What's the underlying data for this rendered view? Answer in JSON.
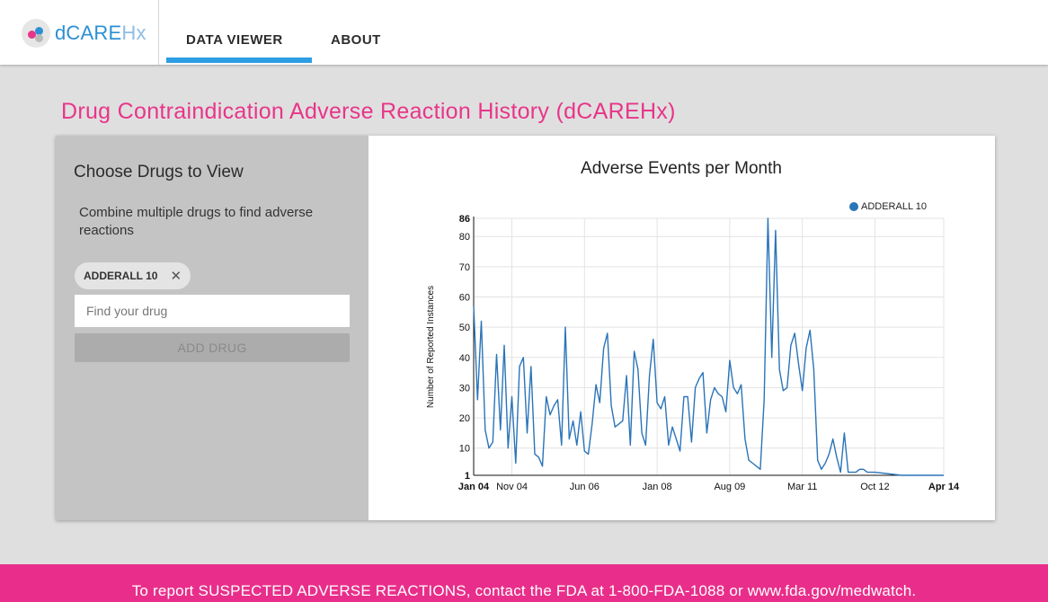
{
  "app": {
    "logo_main": "dCARE",
    "logo_accent": "Hx"
  },
  "nav": {
    "items": [
      {
        "label": "DATA VIEWER",
        "active": true
      },
      {
        "label": "ABOUT",
        "active": false
      }
    ]
  },
  "page": {
    "title": "Drug Contraindication Adverse Reaction History (dCAREHx)"
  },
  "panel": {
    "heading": "Choose Drugs to View",
    "description": "Combine multiple drugs to find adverse reactions",
    "selected_drugs": [
      "ADDERALL 10"
    ],
    "search_placeholder": "Find your drug",
    "search_value": "",
    "add_button_label": "ADD DRUG",
    "remove_icon": "close-icon"
  },
  "footer": {
    "text": "To report SUSPECTED ADVERSE REACTIONS, contact the FDA at 1-800-FDA-1088 or www.fda.gov/medwatch."
  },
  "colors": {
    "accent_pink": "#e8358a",
    "accent_blue": "#2d8fd4",
    "series_blue": "#2a74b8"
  },
  "chart_data": {
    "type": "line",
    "title": "Adverse Events per Month",
    "xlabel": "",
    "ylabel": "Number of Reported Instances",
    "legend_position": "top-right",
    "grid": true,
    "ylim": [
      1,
      86
    ],
    "y_ticks": [
      1,
      10,
      20,
      30,
      40,
      50,
      60,
      70,
      80,
      86
    ],
    "x_tick_labels": [
      "Jan 04",
      "Nov 04",
      "Jun 06",
      "Jan 08",
      "Aug 09",
      "Mar 11",
      "Oct 12",
      "Apr 14"
    ],
    "x_tick_months": [
      0,
      10,
      29,
      48,
      67,
      86,
      105,
      123
    ],
    "x_domain_months": [
      0,
      123
    ],
    "series": [
      {
        "name": "ADDERALL 10",
        "x_months": [
          0,
          1,
          2,
          3,
          4,
          5,
          6,
          7,
          8,
          9,
          10,
          11,
          12,
          13,
          14,
          15,
          16,
          17,
          18,
          19,
          20,
          21,
          22,
          23,
          24,
          25,
          26,
          27,
          28,
          29,
          30,
          31,
          32,
          33,
          34,
          35,
          36,
          37,
          38,
          39,
          40,
          41,
          42,
          43,
          44,
          45,
          46,
          47,
          48,
          49,
          50,
          51,
          52,
          53,
          54,
          55,
          56,
          57,
          58,
          59,
          60,
          61,
          62,
          63,
          64,
          65,
          66,
          67,
          68,
          69,
          70,
          71,
          72,
          73,
          74,
          75,
          76,
          77,
          78,
          79,
          80,
          81,
          82,
          83,
          84,
          85,
          86,
          87,
          88,
          89,
          90,
          91,
          92,
          93,
          94,
          95,
          96,
          97,
          98,
          99,
          100,
          101,
          102,
          103,
          104,
          105,
          112,
          123
        ],
        "values": [
          57,
          26,
          52,
          16,
          10,
          12,
          41,
          16,
          44,
          10,
          27,
          5,
          37,
          40,
          15,
          37,
          8,
          7,
          4,
          27,
          21,
          24,
          26,
          11,
          50,
          13,
          19,
          11,
          22,
          9,
          8,
          18,
          31,
          25,
          43,
          48,
          24,
          17,
          18,
          19,
          34,
          11,
          42,
          36,
          15,
          11,
          34,
          46,
          25,
          23,
          27,
          11,
          17,
          13,
          9,
          27,
          27,
          12,
          30,
          33,
          35,
          15,
          26,
          30,
          28,
          27,
          22,
          39,
          30,
          28,
          31,
          13,
          6,
          5,
          4,
          3,
          26,
          86,
          40,
          82,
          36,
          29,
          30,
          44,
          48,
          38,
          29,
          43,
          49,
          36,
          6,
          3,
          5,
          8,
          13,
          7,
          2,
          15,
          2,
          2,
          2,
          3,
          3,
          2,
          2,
          2,
          1,
          1
        ]
      }
    ]
  }
}
